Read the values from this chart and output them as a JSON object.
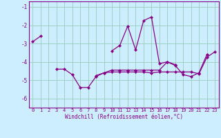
{
  "xlabel": "Windchill (Refroidissement éolien,°C)",
  "bg_color": "#cceeff",
  "line_color": "#880088",
  "grid_color": "#99ccbb",
  "xlim": [
    -0.5,
    23.5
  ],
  "ylim": [
    -6.5,
    -0.7
  ],
  "yticks": [
    -6,
    -5,
    -4,
    -3,
    -2,
    -1
  ],
  "xticks": [
    0,
    1,
    2,
    3,
    4,
    5,
    6,
    7,
    8,
    9,
    10,
    11,
    12,
    13,
    14,
    15,
    16,
    17,
    18,
    19,
    20,
    21,
    22,
    23
  ],
  "series": [
    [
      0,
      -2.9,
      1,
      -2.6
    ],
    [
      3,
      -4.4,
      4,
      -4.4,
      5,
      -4.7,
      6,
      -5.4,
      7,
      -5.4,
      8,
      -4.8,
      9,
      -4.6,
      10,
      -4.45,
      11,
      -4.45,
      12,
      -4.45,
      13,
      -4.45,
      14,
      -4.45,
      15,
      -4.45,
      16,
      -4.45,
      17,
      -4.0,
      18,
      -4.2,
      19,
      -4.7,
      20,
      -4.8,
      21,
      -4.6,
      22,
      -3.6
    ],
    [
      10,
      -3.4,
      11,
      -3.1,
      12,
      -2.05,
      13,
      -3.35,
      14,
      -1.75,
      15,
      -1.55,
      16,
      -4.1,
      17,
      -4.0,
      18,
      -4.15
    ],
    [
      8,
      -4.75,
      9,
      -4.6,
      10,
      -4.55,
      11,
      -4.55,
      12,
      -4.55,
      13,
      -4.55,
      14,
      -4.55,
      15,
      -4.6,
      16,
      -4.55,
      17,
      -4.55,
      18,
      -4.55,
      19,
      -4.55,
      20,
      -4.55,
      21,
      -4.65,
      22,
      -3.75,
      23,
      -3.45
    ]
  ]
}
